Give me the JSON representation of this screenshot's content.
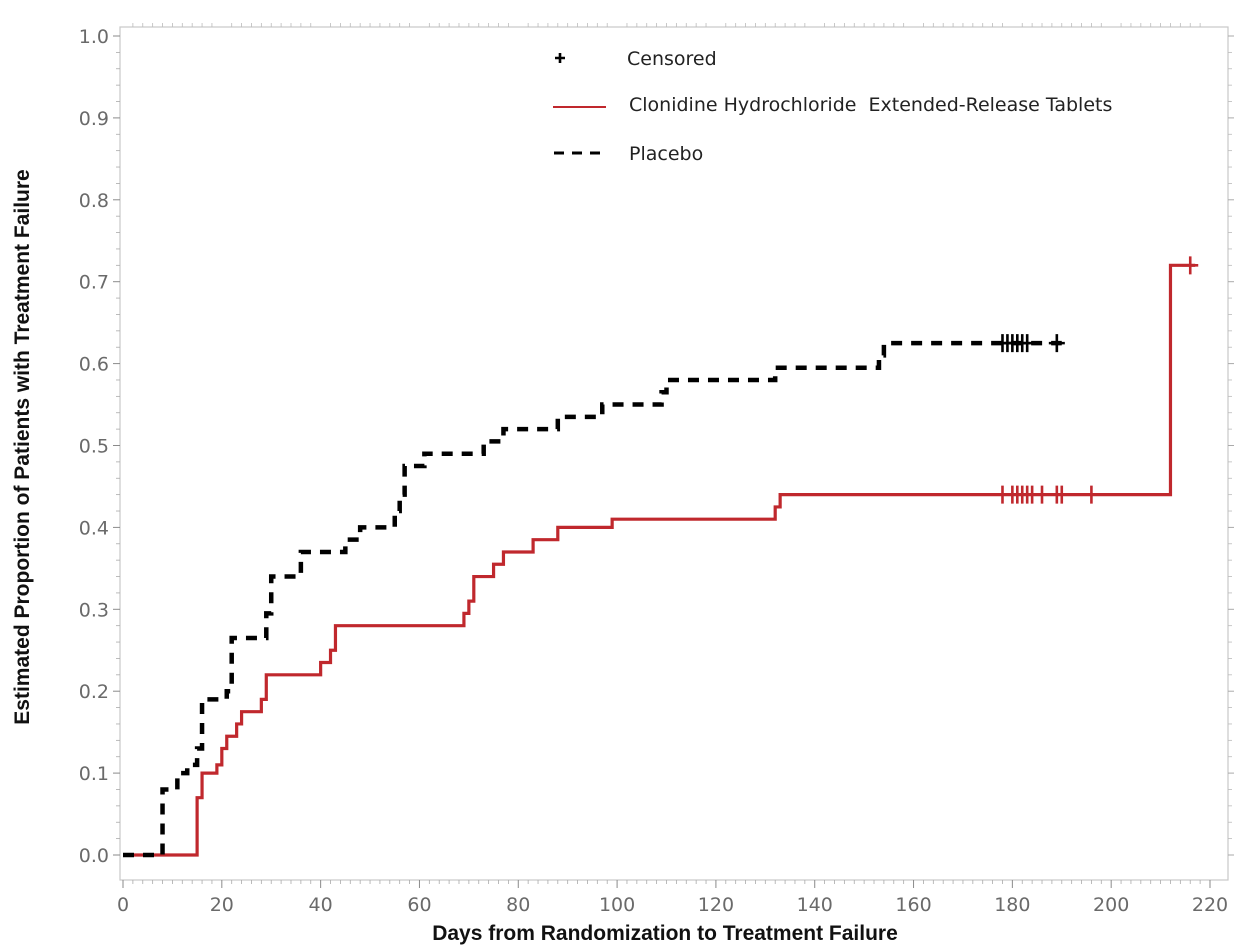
{
  "chart_data": {
    "type": "line",
    "subtype": "kaplan-meier-cumulative-incidence",
    "xlabel": "Days from Randomization to Treatment Failure",
    "ylabel": "Estimated Proportion of Patients with Treatment Failure",
    "xlim": [
      0,
      220
    ],
    "ylim": [
      0,
      1.0
    ],
    "xticks": [
      0,
      20,
      40,
      60,
      80,
      100,
      120,
      140,
      160,
      180,
      200,
      220
    ],
    "yticks": [
      "0.0",
      "0.1",
      "0.2",
      "0.3",
      "0.4",
      "0.5",
      "0.6",
      "0.7",
      "0.8",
      "0.9",
      "1.0"
    ],
    "grid": false,
    "legend_position": "top-center",
    "legend": [
      {
        "symbol": "+",
        "label": "Censored",
        "color": "#000000"
      },
      {
        "symbol": "solid-line",
        "label": "Clonidine Hydrochloride  Extended-Release Tablets",
        "color": "#c0282d"
      },
      {
        "symbol": "dashed-line",
        "label": "Placebo",
        "color": "#000000"
      }
    ],
    "series": [
      {
        "name": "Clonidine Hydrochloride  Extended-Release Tablets",
        "style": "solid",
        "color": "#c0282d",
        "steps": [
          [
            0,
            0
          ],
          [
            15,
            0.07
          ],
          [
            16,
            0.1
          ],
          [
            19,
            0.11
          ],
          [
            20,
            0.13
          ],
          [
            21,
            0.145
          ],
          [
            23,
            0.16
          ],
          [
            24,
            0.175
          ],
          [
            28,
            0.19
          ],
          [
            29,
            0.22
          ],
          [
            40,
            0.235
          ],
          [
            42,
            0.25
          ],
          [
            43,
            0.28
          ],
          [
            69,
            0.295
          ],
          [
            70,
            0.31
          ],
          [
            71,
            0.34
          ],
          [
            75,
            0.355
          ],
          [
            77,
            0.37
          ],
          [
            83,
            0.385
          ],
          [
            88,
            0.4
          ],
          [
            99,
            0.41
          ],
          [
            132,
            0.425
          ],
          [
            133,
            0.44
          ],
          [
            212,
            0.72
          ]
        ],
        "end_x": 217,
        "censored_x": [
          178,
          180,
          181,
          182,
          183,
          184,
          186,
          189,
          190,
          196,
          216
        ]
      },
      {
        "name": "Placebo",
        "style": "dashed",
        "color": "#000000",
        "steps": [
          [
            0,
            0
          ],
          [
            8,
            0.08
          ],
          [
            11,
            0.1
          ],
          [
            13,
            0.11
          ],
          [
            15,
            0.13
          ],
          [
            16,
            0.19
          ],
          [
            21,
            0.2
          ],
          [
            22,
            0.265
          ],
          [
            29,
            0.295
          ],
          [
            30,
            0.34
          ],
          [
            36,
            0.37
          ],
          [
            45,
            0.385
          ],
          [
            48,
            0.4
          ],
          [
            55,
            0.42
          ],
          [
            56,
            0.44
          ],
          [
            57,
            0.475
          ],
          [
            61,
            0.49
          ],
          [
            73,
            0.505
          ],
          [
            77,
            0.52
          ],
          [
            88,
            0.535
          ],
          [
            97,
            0.55
          ],
          [
            109,
            0.565
          ],
          [
            110,
            0.58
          ],
          [
            132,
            0.595
          ],
          [
            153,
            0.61
          ],
          [
            154,
            0.625
          ]
        ],
        "end_x": 190,
        "censored_x": [
          178,
          179,
          180,
          181,
          182,
          183,
          189
        ]
      }
    ]
  }
}
